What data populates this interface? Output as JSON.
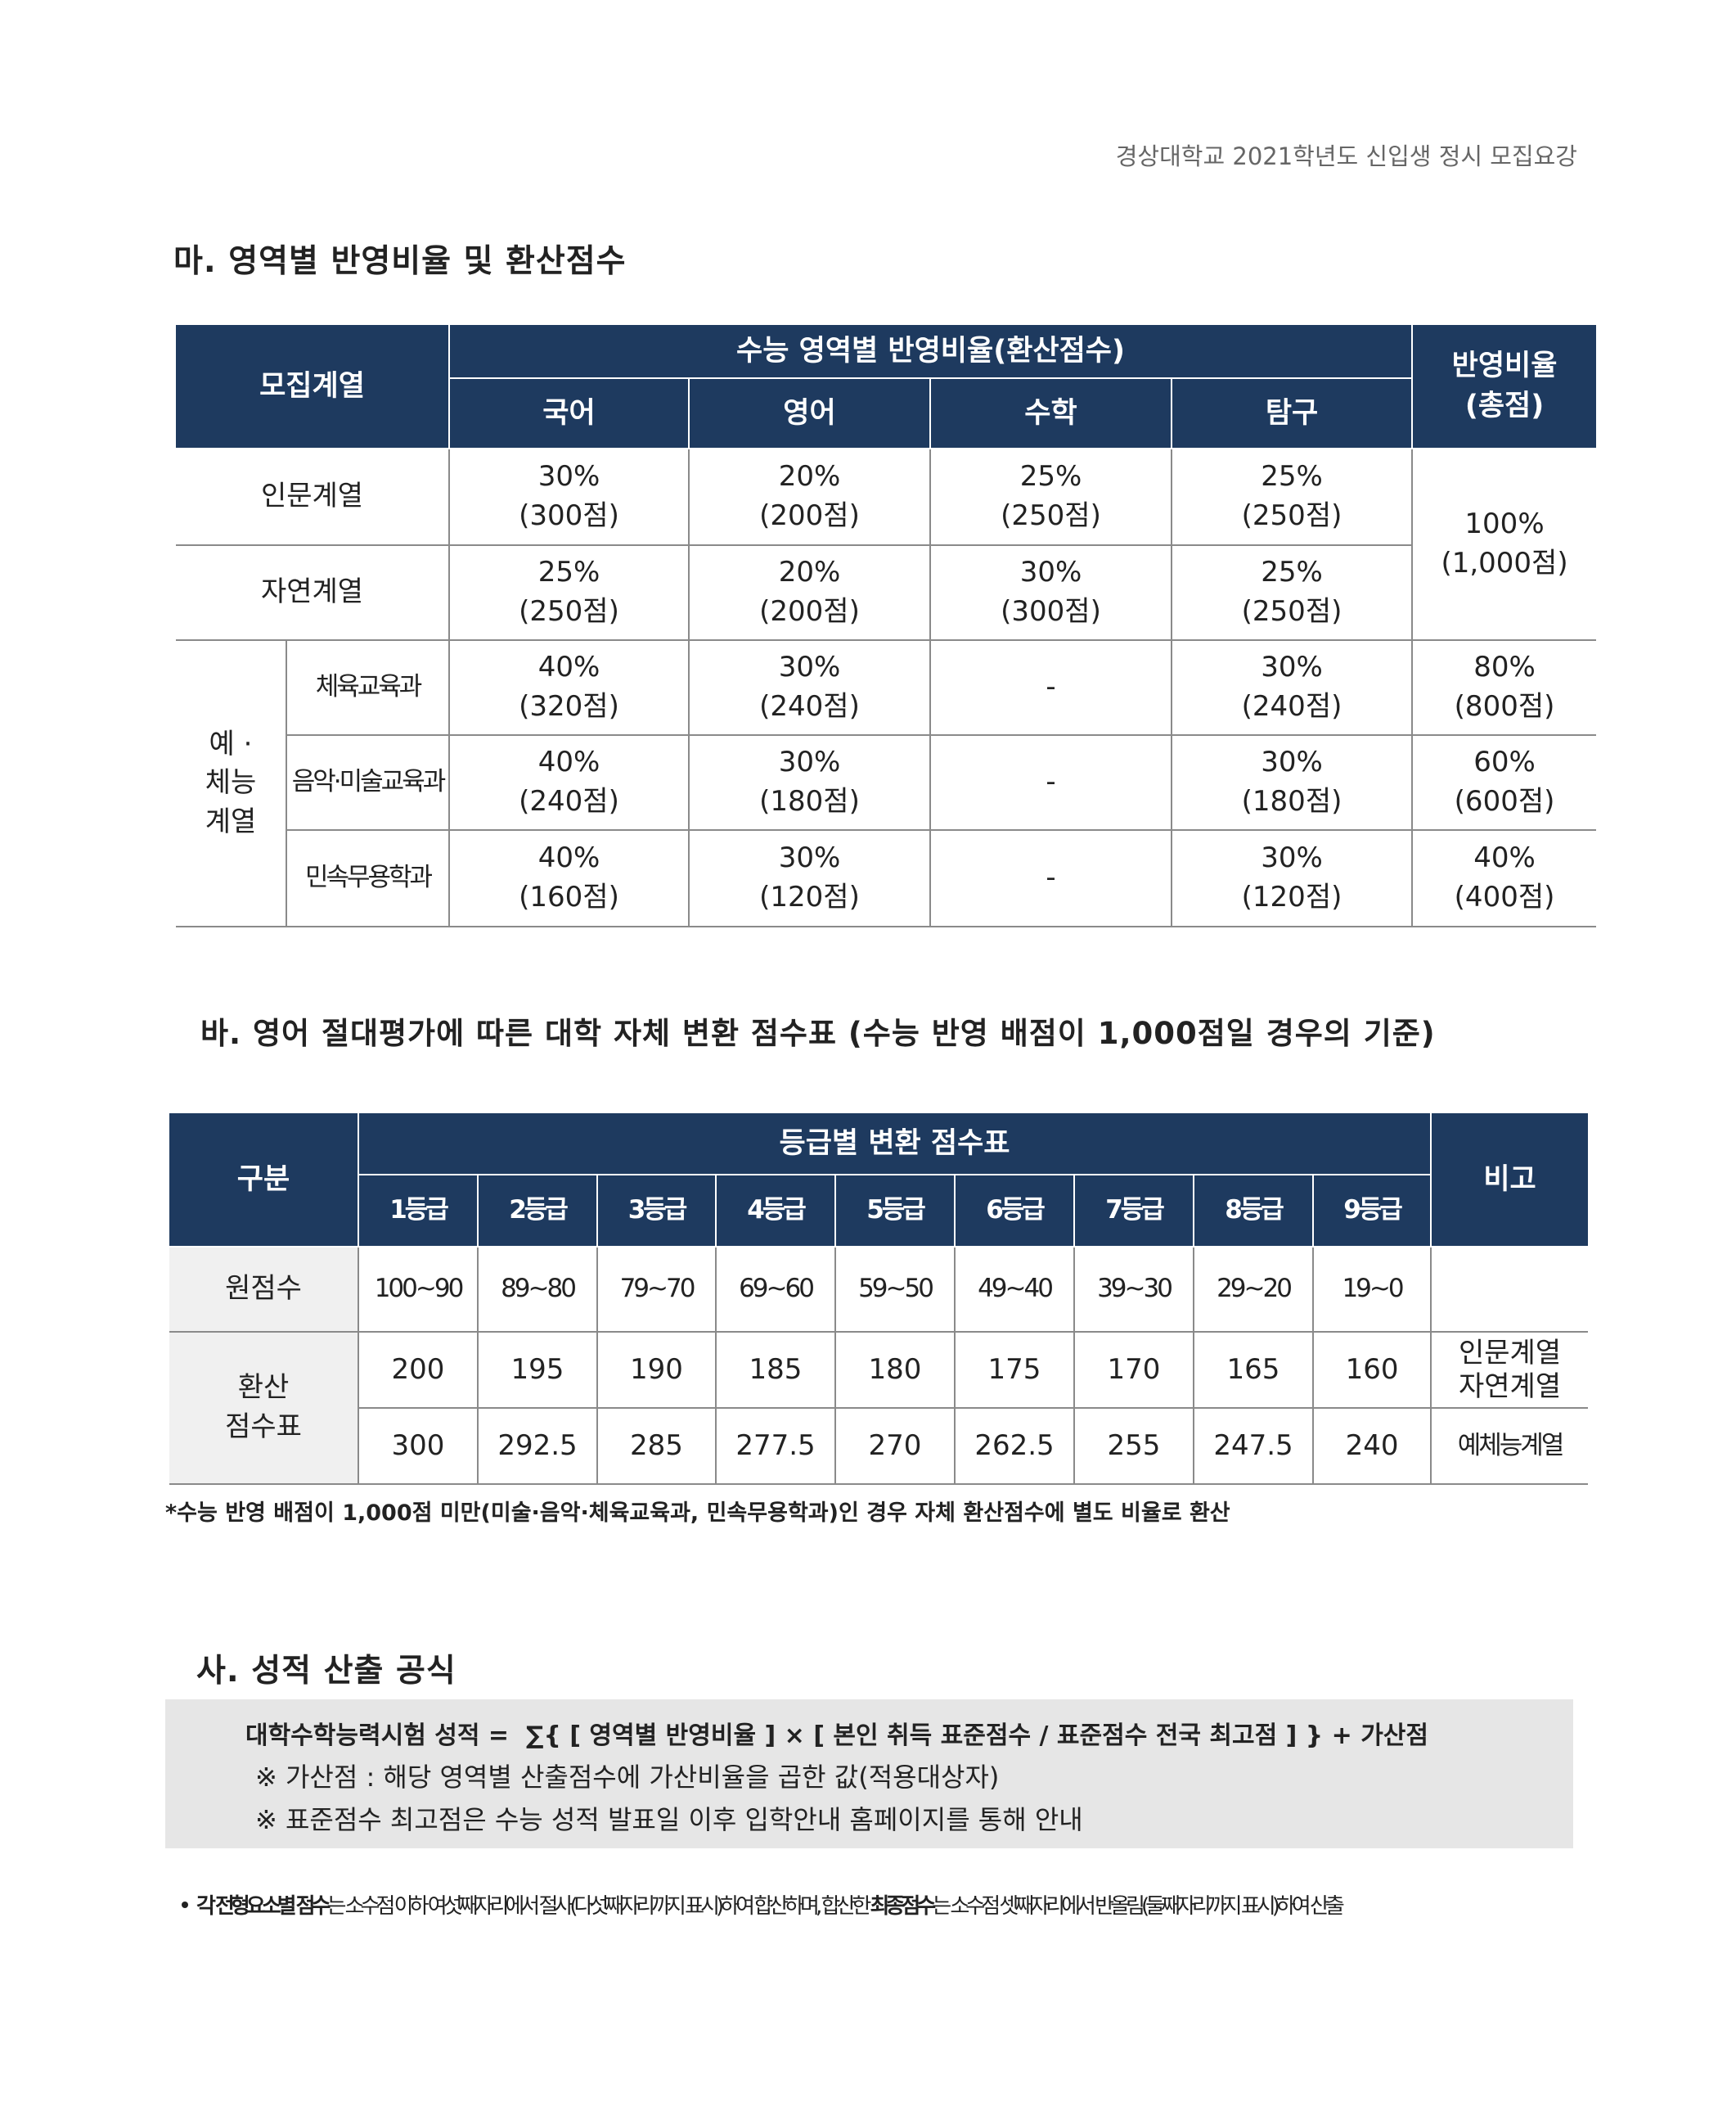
{
  "header": {
    "title": "경상대학교 2021학년도 신입생 정시 모집요강"
  },
  "section1": {
    "title": "마. 영역별 반영비율 및 환산점수",
    "table": {
      "head_group": "모집계열",
      "head_span": "수능 영역별 반영비율(환산점수)",
      "head_total": "반영비율\n(총점)",
      "subjects": [
        "국어",
        "영어",
        "수학",
        "탐구"
      ],
      "rows": [
        {
          "name": "인문계열",
          "cells": [
            "30%\n(300점)",
            "20%\n(200점)",
            "25%\n(250점)",
            "25%\n(250점)"
          ]
        },
        {
          "name": "자연계열",
          "cells": [
            "25%\n(250점)",
            "20%\n(200점)",
            "30%\n(300점)",
            "25%\n(250점)"
          ]
        }
      ],
      "shared_total": "100%\n(1,000점)",
      "group": "예 ·\n체능\n계열",
      "group_rows": [
        {
          "name": "체육교육과",
          "cells": [
            "40%\n(320점)",
            "30%\n(240점)",
            "-",
            "30%\n(240점)"
          ],
          "total": "80%\n(800점)"
        },
        {
          "name": "음악·미술교육과",
          "cells": [
            "40%\n(240점)",
            "30%\n(180점)",
            "-",
            "30%\n(180점)"
          ],
          "total": "60%\n(600점)"
        },
        {
          "name": "민속무용학과",
          "cells": [
            "40%\n(160점)",
            "30%\n(120점)",
            "-",
            "30%\n(120점)"
          ],
          "total": "40%\n(400점)"
        }
      ]
    }
  },
  "section2": {
    "title": "바. 영어 절대평가에 따른 대학 자체 변환 점수표 (수능 반영 배점이 1,000점일 경우의 기준)",
    "table": {
      "head_label": "구분",
      "head_span": "등급별 변환 점수표",
      "head_note": "비고",
      "grades": [
        "1등급",
        "2등급",
        "3등급",
        "4등급",
        "5등급",
        "6등급",
        "7등급",
        "8등급",
        "9등급"
      ],
      "raw_label": "원점수",
      "raw": [
        "100~90",
        "89~80",
        "79~70",
        "69~60",
        "59~50",
        "49~40",
        "39~30",
        "29~20",
        "19~0"
      ],
      "conv_label": "환산\n점수표",
      "conv_rows": [
        {
          "values": [
            200,
            195,
            190,
            185,
            180,
            175,
            170,
            165,
            160
          ],
          "note": "인문계열\n자연계열"
        },
        {
          "values": [
            300,
            292.5,
            285,
            277.5,
            270,
            262.5,
            255,
            247.5,
            240
          ],
          "note": "예체능계열"
        }
      ]
    },
    "note": "*수능 반영 배점이 1,000점 미만(미술·음악·체육교육과, 민속무용학과)인 경우 자체 환산점수에 별도 비율로 환산"
  },
  "section3": {
    "title": "사. 성적 산출 공식",
    "formula": "대학수학능력시험 성적 =  ∑{ [ 영역별 반영비율 ] × [ 본인 취득 표준점수 / 표준점수 전국 최고점 ] } + 가산점",
    "remarks": [
      "※ 가산점 : 해당 영역별 산출점수에 가산비율을 곱한 값(적용대상자)",
      "※ 표준점수 최고점은 수능 성적 발표일 이후 입학안내 홈페이지를 통해 안내"
    ]
  },
  "footnote": {
    "segments": [
      {
        "text": "각 전형요소별 점수",
        "bold": true
      },
      {
        "text": "는 소수점 이하 여섯째자리에서 절사(다섯째자리까지 표시)하여 합산하며, 합산한 ",
        "bold": false
      },
      {
        "text": "최종점수",
        "bold": true
      },
      {
        "text": "는 소수점 셋째자리에서 반올림(둘째자리까지 표시)하여 산출",
        "bold": false
      }
    ]
  }
}
